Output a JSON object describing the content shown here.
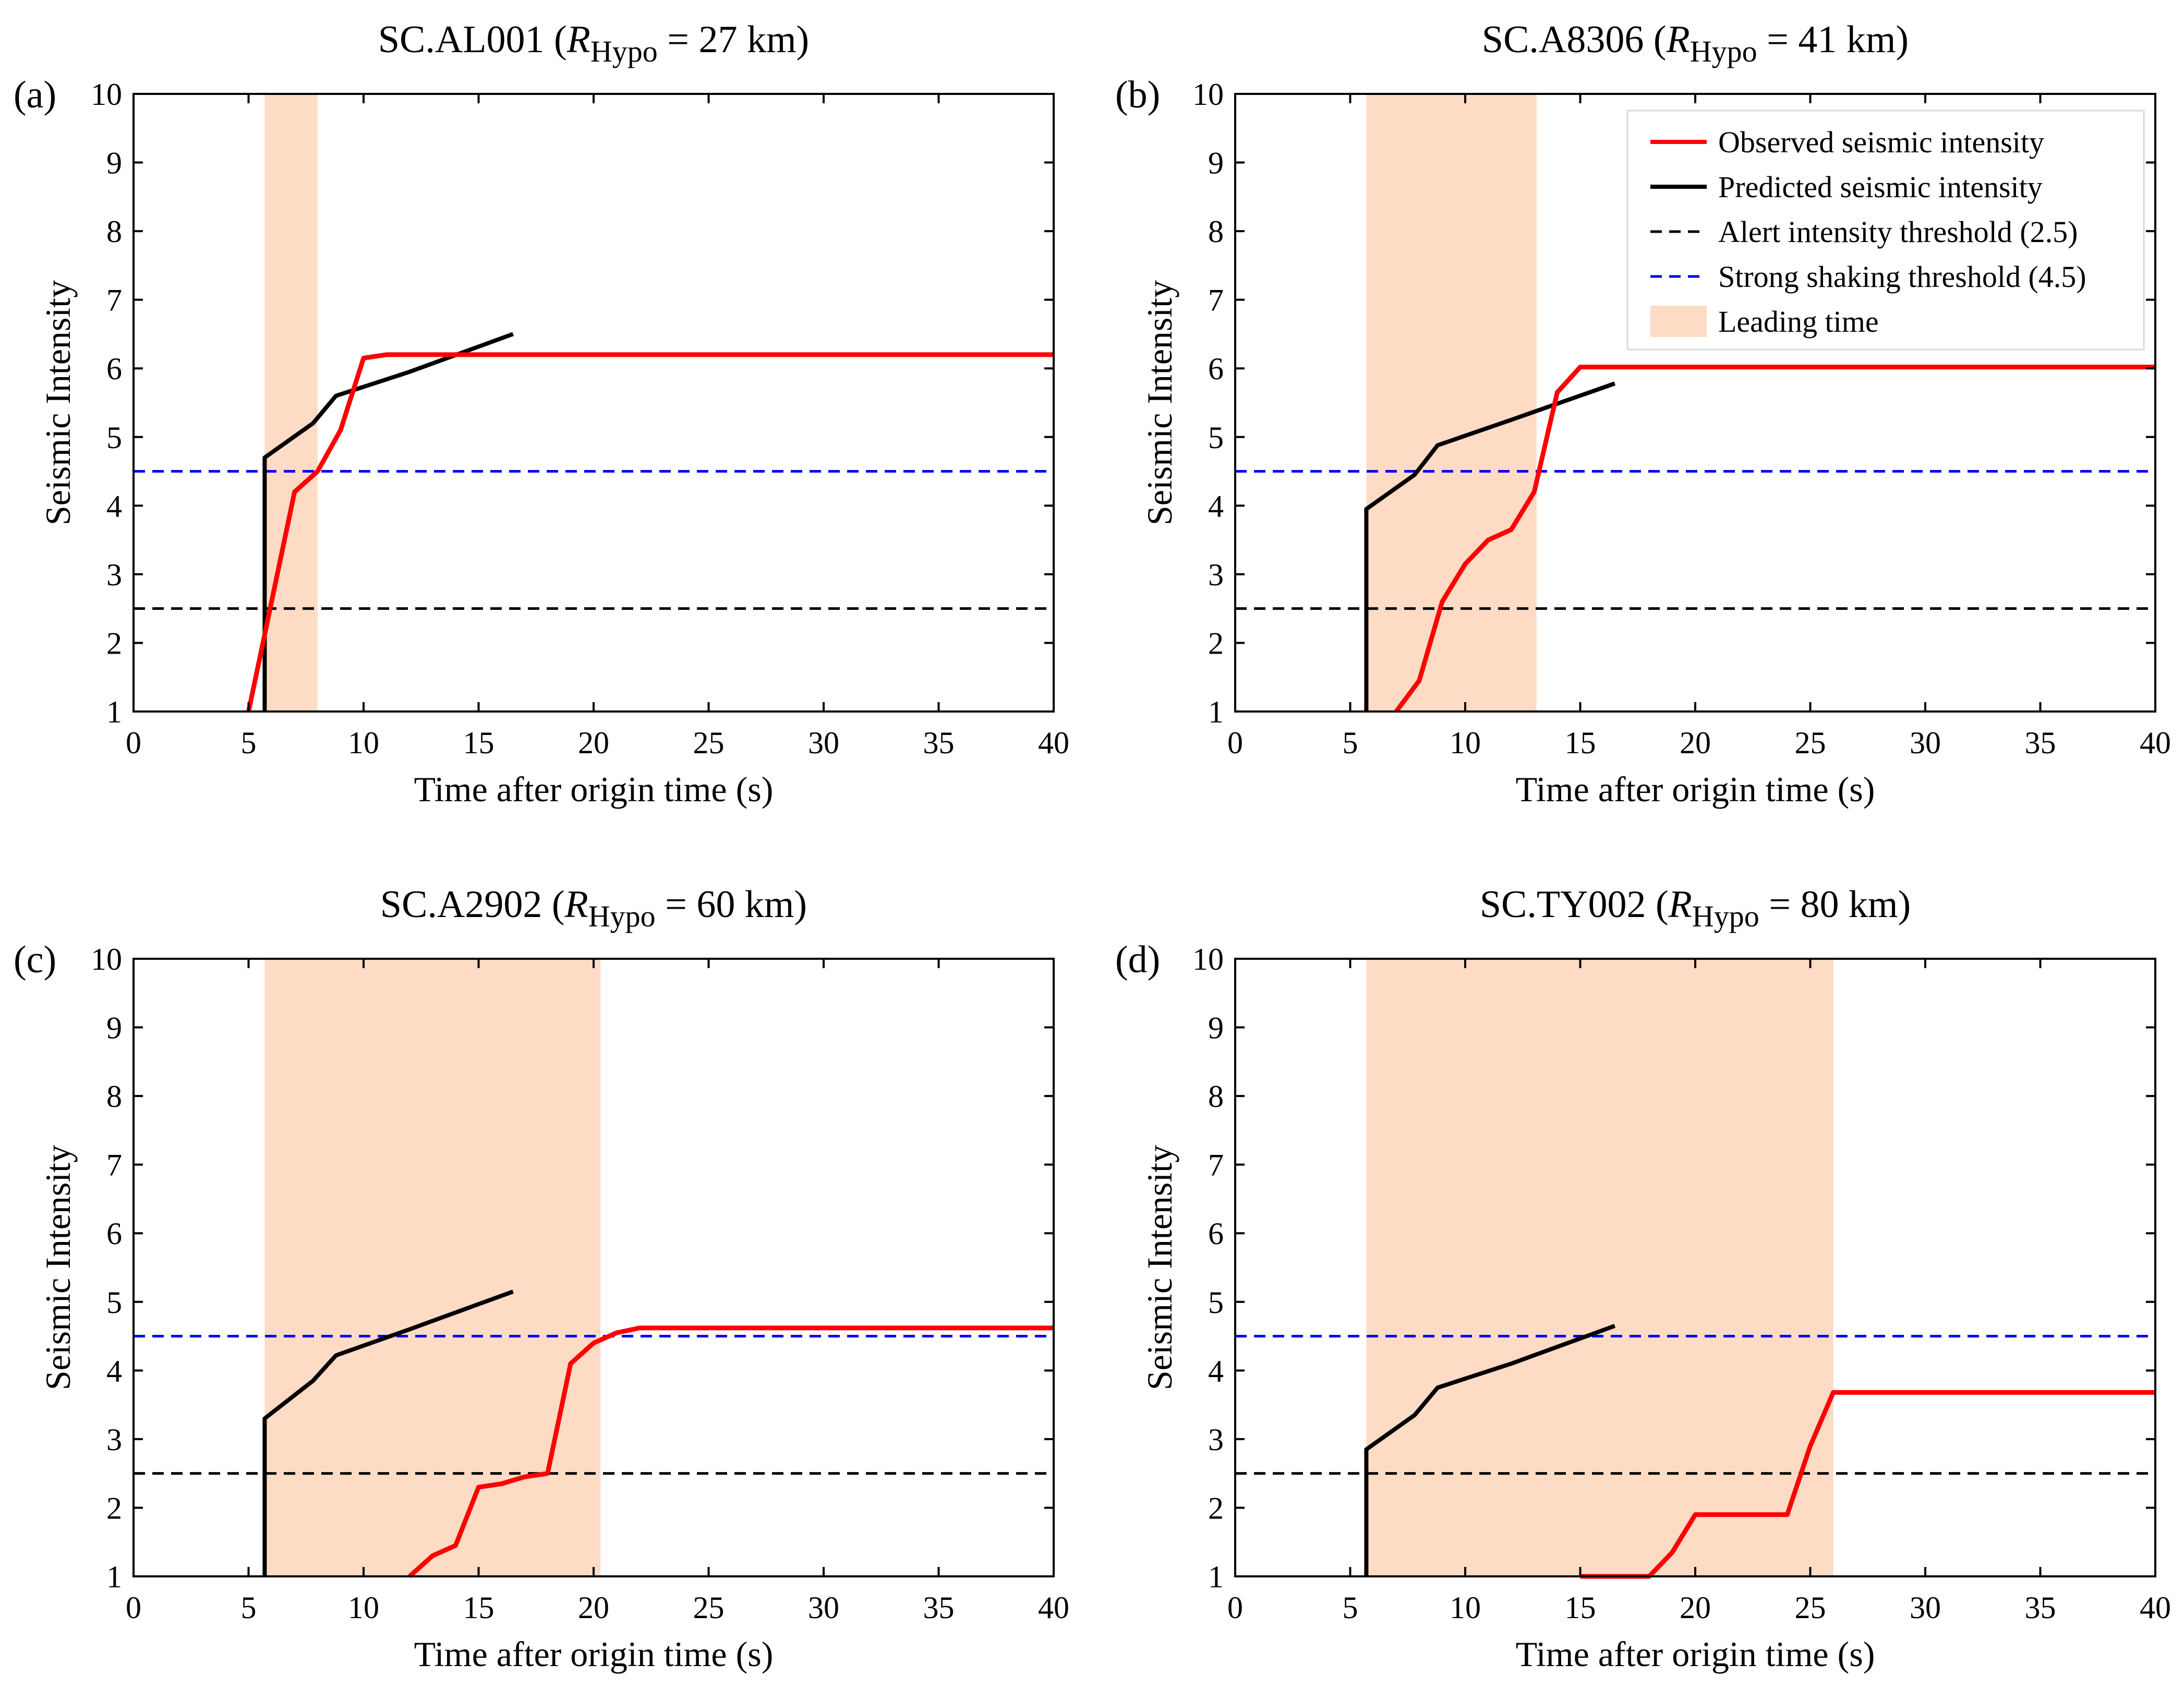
{
  "figure": {
    "legend": [
      {
        "label": "Observed seismic intensity",
        "kind": "line",
        "color": "#ff0000",
        "dash": "solid"
      },
      {
        "label": "Predicted seismic intensity",
        "kind": "line",
        "color": "#000000",
        "dash": "solid"
      },
      {
        "label": "Alert intensity threshold (2.5)",
        "kind": "line",
        "color": "#000000",
        "dash": "dashed"
      },
      {
        "label": "Strong shaking threshold (4.5)",
        "kind": "line",
        "color": "#0000ff",
        "dash": "dashed"
      },
      {
        "label": "Leading time",
        "kind": "patch",
        "color": "#fddbc4"
      }
    ],
    "legend_panel": 1,
    "legend_location": "top-right"
  },
  "chart_data": [
    {
      "type": "line",
      "letter": "(a)",
      "station": "SC.AL001",
      "title_var": "R",
      "title_sub": "Hypo",
      "title_value": "= 27 km)",
      "xlabel": "Time after origin time (s)",
      "ylabel": "Seismic Intensity",
      "xlim": [
        0,
        40
      ],
      "ylim": [
        1,
        10
      ],
      "xticks": [
        0,
        5,
        10,
        15,
        20,
        25,
        30,
        35,
        40
      ],
      "yticks": [
        1,
        2,
        3,
        4,
        5,
        6,
        7,
        8,
        9,
        10
      ],
      "leading_time": [
        5.7,
        8.0
      ],
      "alert_threshold": 2.5,
      "strong_threshold": 4.5,
      "series": [
        {
          "name": "Observed seismic intensity",
          "color": "#ff0000",
          "x": [
            5,
            7,
            8,
            9,
            10,
            11,
            15,
            20,
            25,
            30,
            35,
            40
          ],
          "y": [
            1,
            4.2,
            4.5,
            5.1,
            6.15,
            6.2,
            6.2,
            6.2,
            6.2,
            6.2,
            6.2,
            6.2
          ]
        },
        {
          "name": "Predicted seismic intensity",
          "color": "#000000",
          "x": [
            5.7,
            5.7,
            7.8,
            8.8,
            12,
            16.5
          ],
          "y": [
            1,
            4.7,
            5.2,
            5.6,
            5.95,
            6.5
          ]
        }
      ]
    },
    {
      "type": "line",
      "letter": "(b)",
      "station": "SC.A8306",
      "title_var": "R",
      "title_sub": "Hypo",
      "title_value": "= 41 km)",
      "xlabel": "Time after origin time (s)",
      "ylabel": "Seismic Intensity",
      "xlim": [
        0,
        40
      ],
      "ylim": [
        1,
        10
      ],
      "xticks": [
        0,
        5,
        10,
        15,
        20,
        25,
        30,
        35,
        40
      ],
      "yticks": [
        1,
        2,
        3,
        4,
        5,
        6,
        7,
        8,
        9,
        10
      ],
      "leading_time": [
        5.7,
        13.1
      ],
      "alert_threshold": 2.5,
      "strong_threshold": 4.5,
      "series": [
        {
          "name": "Observed seismic intensity",
          "color": "#ff0000",
          "x": [
            7,
            8,
            9,
            10,
            11,
            12,
            13,
            14,
            15,
            20,
            25,
            30,
            35,
            40
          ],
          "y": [
            1,
            1.45,
            2.6,
            3.15,
            3.5,
            3.65,
            4.2,
            5.65,
            6.02,
            6.02,
            6.02,
            6.02,
            6.02,
            6.02
          ]
        },
        {
          "name": "Predicted seismic intensity",
          "color": "#000000",
          "x": [
            5.7,
            5.7,
            7.8,
            8.8,
            12,
            16.5
          ],
          "y": [
            1,
            3.95,
            4.45,
            4.88,
            5.25,
            5.78
          ]
        }
      ]
    },
    {
      "type": "line",
      "letter": "(c)",
      "station": "SC.A2902",
      "title_var": "R",
      "title_sub": "Hypo",
      "title_value": "= 60 km)",
      "xlabel": "Time after origin time (s)",
      "ylabel": "Seismic Intensity",
      "xlim": [
        0,
        40
      ],
      "ylim": [
        1,
        10
      ],
      "xticks": [
        0,
        5,
        10,
        15,
        20,
        25,
        30,
        35,
        40
      ],
      "yticks": [
        1,
        2,
        3,
        4,
        5,
        6,
        7,
        8,
        9,
        10
      ],
      "leading_time": [
        5.7,
        20.3
      ],
      "alert_threshold": 2.5,
      "strong_threshold": 4.5,
      "series": [
        {
          "name": "Observed seismic intensity",
          "color": "#ff0000",
          "x": [
            12,
            13,
            14,
            15,
            16,
            17,
            18,
            19,
            20,
            21,
            22,
            25,
            30,
            35,
            40
          ],
          "y": [
            1,
            1.3,
            1.45,
            2.3,
            2.35,
            2.45,
            2.5,
            4.1,
            4.4,
            4.55,
            4.62,
            4.62,
            4.62,
            4.62,
            4.62
          ]
        },
        {
          "name": "Predicted seismic intensity",
          "color": "#000000",
          "x": [
            5.7,
            5.7,
            7.8,
            8.8,
            12,
            16.5
          ],
          "y": [
            1,
            3.3,
            3.85,
            4.22,
            4.6,
            5.15
          ]
        }
      ]
    },
    {
      "type": "line",
      "letter": "(d)",
      "station": "SC.TY002",
      "title_var": "R",
      "title_sub": "Hypo",
      "title_value": "= 80 km)",
      "xlabel": "Time after origin time (s)",
      "ylabel": "Seismic Intensity",
      "xlim": [
        0,
        40
      ],
      "ylim": [
        1,
        10
      ],
      "xticks": [
        0,
        5,
        10,
        15,
        20,
        25,
        30,
        35,
        40
      ],
      "yticks": [
        1,
        2,
        3,
        4,
        5,
        6,
        7,
        8,
        9,
        10
      ],
      "leading_time": [
        5.7,
        26.0
      ],
      "alert_threshold": 2.5,
      "strong_threshold": 4.5,
      "series": [
        {
          "name": "Observed seismic intensity",
          "color": "#ff0000",
          "x": [
            15,
            18,
            19,
            20,
            24,
            25,
            26,
            30,
            35,
            40
          ],
          "y": [
            1,
            1,
            1.35,
            1.9,
            1.9,
            2.9,
            3.68,
            3.68,
            3.68,
            3.68
          ]
        },
        {
          "name": "Predicted seismic intensity",
          "color": "#000000",
          "x": [
            5.7,
            5.7,
            7.8,
            8.8,
            12,
            16.5
          ],
          "y": [
            1,
            2.85,
            3.35,
            3.75,
            4.1,
            4.65
          ]
        }
      ]
    }
  ]
}
